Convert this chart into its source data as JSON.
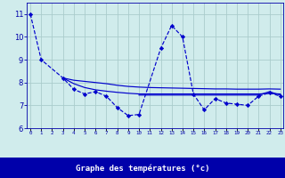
{
  "xlabel": "Graphe des températures (°c)",
  "background_color": "#d0ecec",
  "line_color": "#0000cc",
  "grid_color": "#aacccc",
  "ylim": [
    6,
    11.5
  ],
  "xlim": [
    -0.3,
    23.3
  ],
  "yticks": [
    6,
    7,
    8,
    9,
    10,
    11
  ],
  "xtick_labels": [
    "0",
    "1",
    "2",
    "3",
    "4",
    "5",
    "6",
    "7",
    "8",
    "9",
    "10",
    "11",
    "12",
    "13",
    "14",
    "15",
    "16",
    "17",
    "18",
    "19",
    "20",
    "21",
    "22",
    "23"
  ],
  "s1_x": [
    0,
    1,
    3,
    4,
    5,
    6,
    7,
    8,
    9,
    10,
    12,
    13,
    14,
    15,
    16,
    17,
    18,
    19,
    20,
    21,
    22,
    23
  ],
  "s1_y": [
    11.0,
    9.0,
    8.2,
    7.7,
    7.5,
    7.6,
    7.4,
    6.9,
    6.55,
    6.6,
    9.5,
    10.5,
    10.0,
    7.5,
    6.8,
    7.3,
    7.1,
    7.05,
    7.0,
    7.4,
    7.55,
    7.4
  ],
  "s2_x": [
    3,
    4,
    5,
    6,
    7,
    8,
    9,
    10,
    11,
    12,
    13,
    14,
    15,
    16,
    17,
    18,
    19,
    20,
    21,
    22,
    23
  ],
  "s2_y": [
    8.2,
    7.95,
    7.78,
    7.68,
    7.62,
    7.57,
    7.53,
    7.5,
    7.5,
    7.5,
    7.5,
    7.5,
    7.5,
    7.5,
    7.5,
    7.5,
    7.5,
    7.5,
    7.5,
    7.52,
    7.5
  ],
  "s3_x": [
    3,
    4,
    5,
    6,
    7,
    8,
    9,
    10,
    11,
    12,
    13,
    14,
    15,
    16,
    17,
    18,
    19,
    20,
    21,
    22,
    23
  ],
  "s3_y": [
    8.2,
    8.1,
    8.05,
    8.0,
    7.95,
    7.88,
    7.83,
    7.8,
    7.78,
    7.77,
    7.76,
    7.75,
    7.74,
    7.73,
    7.72,
    7.72,
    7.71,
    7.71,
    7.71,
    7.72,
    7.71
  ],
  "s4_x": [
    10,
    11,
    12,
    13,
    14,
    15,
    16,
    17,
    18,
    19,
    20,
    21,
    22,
    23
  ],
  "s4_y": [
    7.45,
    7.45,
    7.45,
    7.45,
    7.45,
    7.45,
    7.45,
    7.45,
    7.45,
    7.45,
    7.45,
    7.45,
    7.6,
    7.45
  ],
  "bottom_bar_color": "#0000aa",
  "xlabel_color": "#ffffff",
  "tick_color": "#0000aa",
  "ylabel_fontsize": 5.5,
  "xlabel_fontsize": 6.5
}
